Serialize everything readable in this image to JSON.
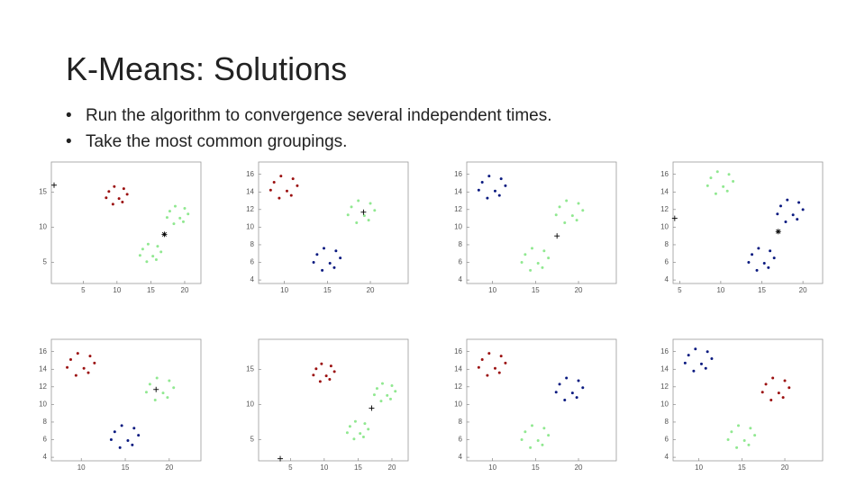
{
  "title": "K-Means: Solutions",
  "bullets": [
    "Run the algorithm to convergence several independent times.",
    "Take the most common groupings."
  ],
  "chart_data": [
    {
      "type": "scatter",
      "xlim": [
        0.3,
        22.4
      ],
      "ylim": [
        2,
        19.3
      ],
      "xticks": [
        5,
        10,
        15,
        20
      ],
      "yticks": [
        5,
        10,
        15
      ],
      "series": [
        {
          "color": "#9b1010",
          "x": [
            8.8,
            10.8,
            9.6,
            11.5,
            10.3,
            8.4,
            11,
            9.4
          ],
          "y": [
            15.1,
            13.6,
            15.8,
            14.7,
            14.1,
            14.2,
            15.5,
            13.3
          ]
        },
        {
          "color": "#90e890",
          "x": [
            17.8,
            19.8,
            18.6,
            20.5,
            19.3,
            17.4,
            20,
            18.4
          ],
          "y": [
            12.3,
            10.8,
            13,
            11.9,
            11.3,
            11.4,
            12.7,
            10.5
          ]
        },
        {
          "color": "#90e890",
          "x": [
            13.8,
            15.8,
            14.6,
            16.5,
            15.3,
            13.4,
            16,
            14.4
          ],
          "y": [
            6.9,
            5.4,
            7.6,
            6.5,
            5.9,
            6,
            7.3,
            5.1
          ]
        },
        {
          "color": "#000000",
          "marker": "*",
          "x": [
            17
          ],
          "y": [
            9
          ]
        },
        {
          "color": "#000000",
          "marker": "+",
          "x": [
            0.7
          ],
          "y": [
            16
          ]
        }
      ]
    },
    {
      "type": "scatter",
      "xlim": [
        7,
        24.4
      ],
      "ylim": [
        3.6,
        17.4
      ],
      "xticks": [
        10,
        15,
        20
      ],
      "yticks": [
        4,
        6,
        8,
        10,
        12,
        14,
        16
      ],
      "series": [
        {
          "color": "#9b1010",
          "x": [
            8.8,
            10.8,
            9.6,
            11.5,
            10.3,
            8.4,
            11,
            9.4
          ],
          "y": [
            15.1,
            13.6,
            15.8,
            14.7,
            14.1,
            14.2,
            15.5,
            13.3
          ]
        },
        {
          "color": "#90e890",
          "x": [
            17.8,
            19.8,
            18.6,
            20.5,
            19.3,
            17.4,
            20,
            18.4
          ],
          "y": [
            12.3,
            10.8,
            13,
            11.9,
            11.3,
            11.4,
            12.7,
            10.5
          ]
        },
        {
          "color": "#0a1a80",
          "x": [
            13.8,
            15.8,
            14.6,
            16.5,
            15.3,
            13.4,
            16,
            14.4
          ],
          "y": [
            6.9,
            5.4,
            7.6,
            6.5,
            5.9,
            6,
            7.3,
            5.1
          ]
        },
        {
          "color": "#000000",
          "marker": "+",
          "x": [
            19.2
          ],
          "y": [
            11.7
          ]
        }
      ]
    },
    {
      "type": "scatter",
      "xlim": [
        7,
        24.4
      ],
      "ylim": [
        3.6,
        17.4
      ],
      "xticks": [
        10,
        15,
        20
      ],
      "yticks": [
        4,
        6,
        8,
        10,
        12,
        14,
        16
      ],
      "series": [
        {
          "color": "#0a1a80",
          "x": [
            8.8,
            10.8,
            9.6,
            11.5,
            10.3,
            8.4,
            11,
            9.4
          ],
          "y": [
            15.1,
            13.6,
            15.8,
            14.7,
            14.1,
            14.2,
            15.5,
            13.3
          ]
        },
        {
          "color": "#90e890",
          "x": [
            17.8,
            19.8,
            18.6,
            20.5,
            19.3,
            17.4,
            20,
            18.4
          ],
          "y": [
            12.3,
            10.8,
            13,
            11.9,
            11.3,
            11.4,
            12.7,
            10.5
          ]
        },
        {
          "color": "#90e890",
          "x": [
            13.8,
            15.8,
            14.6,
            16.5,
            15.3,
            13.4,
            16,
            14.4
          ],
          "y": [
            6.9,
            5.4,
            7.6,
            6.5,
            5.9,
            6,
            7.3,
            5.1
          ]
        },
        {
          "color": "#000000",
          "marker": "+",
          "x": [
            17.5
          ],
          "y": [
            9
          ]
        }
      ]
    },
    {
      "type": "scatter",
      "xlim": [
        4.2,
        22.4
      ],
      "ylim": [
        3.6,
        17.4
      ],
      "xticks": [
        5,
        10,
        15,
        20
      ],
      "yticks": [
        4,
        6,
        8,
        10,
        12,
        14,
        16
      ],
      "series": [
        {
          "color": "#90e890",
          "x": [
            8.8,
            10.8,
            9.6,
            11.5,
            10.3,
            8.4,
            11,
            9.4
          ],
          "y": [
            15.6,
            14.1,
            16.3,
            15.2,
            14.6,
            14.7,
            16,
            13.8
          ]
        },
        {
          "color": "#0a1a80",
          "x": [
            17.3,
            19.3,
            18.1,
            20,
            18.8,
            16.9,
            19.5,
            17.9
          ],
          "y": [
            12.4,
            10.9,
            13.1,
            12,
            11.4,
            11.5,
            12.8,
            10.6
          ]
        },
        {
          "color": "#0a1a80",
          "x": [
            13.8,
            15.8,
            14.6,
            16.5,
            15.3,
            13.4,
            16,
            14.4
          ],
          "y": [
            6.9,
            5.4,
            7.6,
            6.5,
            5.9,
            6,
            7.3,
            5.1
          ]
        },
        {
          "color": "#000000",
          "marker": "*",
          "x": [
            17
          ],
          "y": [
            9.5
          ]
        },
        {
          "color": "#000000",
          "marker": "+",
          "x": [
            4.4
          ],
          "y": [
            11
          ]
        }
      ]
    },
    {
      "type": "scatter",
      "xlim": [
        6.6,
        23.6
      ],
      "ylim": [
        3.6,
        17.4
      ],
      "xticks": [
        10,
        15,
        20
      ],
      "yticks": [
        4,
        6,
        8,
        10,
        12,
        14,
        16
      ],
      "series": [
        {
          "color": "#9b1010",
          "x": [
            8.8,
            10.8,
            9.6,
            11.5,
            10.3,
            8.4,
            11,
            9.4
          ],
          "y": [
            15.1,
            13.6,
            15.8,
            14.7,
            14.1,
            14.2,
            15.5,
            13.3
          ]
        },
        {
          "color": "#90e890",
          "x": [
            17.8,
            19.8,
            18.6,
            20.5,
            19.3,
            17.4,
            20,
            18.4
          ],
          "y": [
            12.3,
            10.8,
            13,
            11.9,
            11.3,
            11.4,
            12.7,
            10.5
          ]
        },
        {
          "color": "#0a1a80",
          "x": [
            13.8,
            15.8,
            14.6,
            16.5,
            15.3,
            13.4,
            16,
            14.4
          ],
          "y": [
            6.9,
            5.4,
            7.6,
            6.5,
            5.9,
            6,
            7.3,
            5.1
          ]
        },
        {
          "color": "#000000",
          "marker": "+",
          "x": [
            18.5
          ],
          "y": [
            11.7
          ]
        }
      ]
    },
    {
      "type": "scatter",
      "xlim": [
        0.3,
        22.4
      ],
      "ylim": [
        2,
        19.3
      ],
      "xticks": [
        5,
        10,
        15,
        20
      ],
      "yticks": [
        5,
        10,
        15
      ],
      "series": [
        {
          "color": "#9b1010",
          "x": [
            8.8,
            10.8,
            9.6,
            11.5,
            10.3,
            8.4,
            11,
            9.4
          ],
          "y": [
            15.1,
            13.6,
            15.8,
            14.7,
            14.1,
            14.2,
            15.5,
            13.3
          ]
        },
        {
          "color": "#90e890",
          "x": [
            17.8,
            19.8,
            18.6,
            20.5,
            19.3,
            17.4,
            20,
            18.4
          ],
          "y": [
            12.3,
            10.8,
            13,
            11.9,
            11.3,
            11.4,
            12.7,
            10.5
          ]
        },
        {
          "color": "#90e890",
          "x": [
            13.8,
            15.8,
            14.6,
            16.5,
            15.3,
            13.4,
            16,
            14.4
          ],
          "y": [
            6.9,
            5.4,
            7.6,
            6.5,
            5.9,
            6,
            7.3,
            5.1
          ]
        },
        {
          "color": "#000000",
          "marker": "+",
          "x": [
            17,
            3.5
          ],
          "y": [
            9.5,
            2.3
          ]
        }
      ]
    },
    {
      "type": "scatter",
      "xlim": [
        7,
        24.4
      ],
      "ylim": [
        3.6,
        17.4
      ],
      "xticks": [
        10,
        15,
        20
      ],
      "yticks": [
        4,
        6,
        8,
        10,
        12,
        14,
        16
      ],
      "series": [
        {
          "color": "#9b1010",
          "x": [
            8.8,
            10.8,
            9.6,
            11.5,
            10.3,
            8.4,
            11,
            9.4
          ],
          "y": [
            15.1,
            13.6,
            15.8,
            14.7,
            14.1,
            14.2,
            15.5,
            13.3
          ]
        },
        {
          "color": "#0a1a80",
          "x": [
            17.8,
            19.8,
            18.6,
            20.5,
            19.3,
            17.4,
            20,
            18.4
          ],
          "y": [
            12.3,
            10.8,
            13,
            11.9,
            11.3,
            11.4,
            12.7,
            10.5
          ]
        },
        {
          "color": "#90e890",
          "x": [
            13.8,
            15.8,
            14.6,
            16.5,
            15.3,
            13.4,
            16,
            14.4
          ],
          "y": [
            6.9,
            5.4,
            7.6,
            6.5,
            5.9,
            6,
            7.3,
            5.1
          ]
        }
      ]
    },
    {
      "type": "scatter",
      "xlim": [
        7,
        24.4
      ],
      "ylim": [
        3.6,
        17.4
      ],
      "xticks": [
        10,
        15,
        20
      ],
      "yticks": [
        4,
        6,
        8,
        10,
        12,
        14,
        16
      ],
      "series": [
        {
          "color": "#0a1a80",
          "x": [
            8.8,
            10.8,
            9.6,
            11.5,
            10.3,
            8.4,
            11,
            9.4
          ],
          "y": [
            15.6,
            14.1,
            16.3,
            15.2,
            14.6,
            14.7,
            16,
            13.8
          ]
        },
        {
          "color": "#9b1010",
          "x": [
            17.8,
            19.8,
            18.6,
            20.5,
            19.3,
            17.4,
            20,
            18.4
          ],
          "y": [
            12.3,
            10.8,
            13,
            11.9,
            11.3,
            11.4,
            12.7,
            10.5
          ]
        },
        {
          "color": "#90e890",
          "x": [
            13.8,
            15.8,
            14.6,
            16.5,
            15.3,
            13.4,
            16,
            14.4
          ],
          "y": [
            6.9,
            5.4,
            7.6,
            6.5,
            5.9,
            6,
            7.3,
            5.1
          ]
        }
      ]
    }
  ]
}
